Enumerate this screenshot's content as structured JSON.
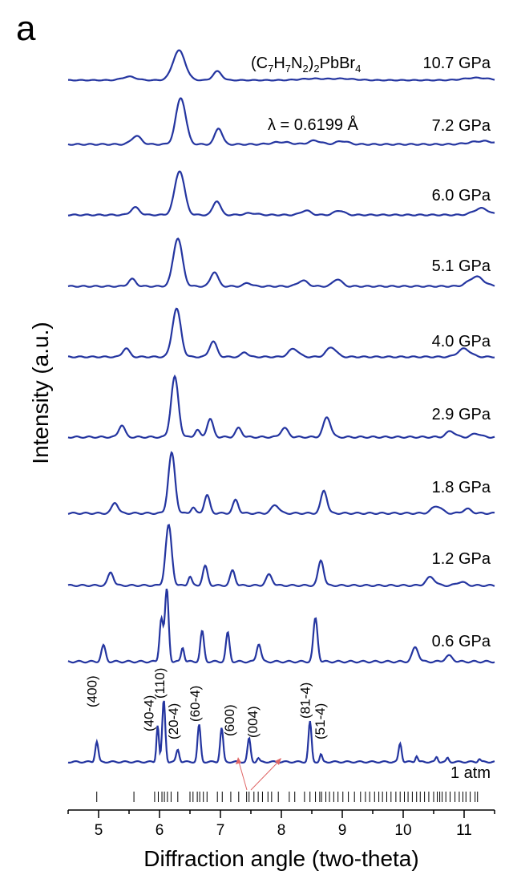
{
  "panel_label": "a",
  "colors": {
    "trace": "#2435a0",
    "axis": "#000000",
    "marker_arrow": "#e06666"
  },
  "chart_data": {
    "type": "line",
    "title": "",
    "xlabel": "Diffraction angle (two-theta)",
    "ylabel": "Intensity (a.u.)",
    "xlim": [
      4.5,
      11.5
    ],
    "x_ticks": [
      "5",
      "6",
      "7",
      "8",
      "9",
      "10",
      "11"
    ],
    "grid": false,
    "stacked": true,
    "annotations": {
      "formula": "(C7H7N2)2PbBr4",
      "wavelength": "λ = 0.6199 Å"
    },
    "miller_indices": [
      {
        "label": "(400)",
        "x": 4.97
      },
      {
        "label": "(40-4)",
        "x": 5.98
      },
      {
        "label": "(110)",
        "x": 6.08
      },
      {
        "label": "(20-4)",
        "x": 6.3
      },
      {
        "label": "(60-4)",
        "x": 6.66
      },
      {
        "label": "(600)",
        "x": 7.3
      },
      {
        "label": "(004)",
        "x": 7.55
      },
      {
        "label": "(81-4)",
        "x": 8.47
      },
      {
        "label": "(51-4)",
        "x": 8.66
      }
    ],
    "reference_ticks": [
      4.97,
      5.58,
      5.92,
      5.98,
      6.04,
      6.08,
      6.13,
      6.19,
      6.3,
      6.5,
      6.55,
      6.62,
      6.66,
      6.72,
      6.78,
      6.95,
      7.03,
      7.17,
      7.3,
      7.43,
      7.47,
      7.55,
      7.62,
      7.69,
      7.78,
      7.84,
      7.95,
      8.13,
      8.22,
      8.38,
      8.47,
      8.56,
      8.63,
      8.66,
      8.73,
      8.79,
      8.86,
      8.93,
      9.01,
      9.1,
      9.2,
      9.3,
      9.38,
      9.45,
      9.53,
      9.6,
      9.66,
      9.73,
      9.8,
      9.88,
      9.95,
      10.02,
      10.08,
      10.15,
      10.22,
      10.28,
      10.35,
      10.42,
      10.5,
      10.56,
      10.6,
      10.64,
      10.7,
      10.77,
      10.85,
      10.92,
      10.98,
      11.03,
      11.1,
      11.18,
      11.22
    ],
    "series": [
      {
        "name": "10.7 GPa",
        "peaks": [
          [
            5.5,
            0.12,
            0.11
          ],
          [
            6.32,
            1.0,
            0.1
          ],
          [
            6.95,
            0.3,
            0.07
          ],
          [
            8.5,
            0.05,
            0.2
          ],
          [
            9.0,
            0.05,
            0.2
          ],
          [
            11.2,
            0.08,
            0.2
          ]
        ]
      },
      {
        "name": "7.2 GPa",
        "peaks": [
          [
            5.62,
            0.18,
            0.08
          ],
          [
            6.35,
            1.0,
            0.08
          ],
          [
            6.97,
            0.35,
            0.06
          ],
          [
            8.0,
            0.05,
            0.15
          ],
          [
            8.55,
            0.08,
            0.1
          ],
          [
            9.0,
            0.07,
            0.1
          ],
          [
            11.3,
            0.07,
            0.2
          ]
        ]
      },
      {
        "name": "6.0 GPa",
        "peaks": [
          [
            5.6,
            0.17,
            0.07
          ],
          [
            6.33,
            1.0,
            0.08
          ],
          [
            6.94,
            0.32,
            0.06
          ],
          [
            7.5,
            0.04,
            0.1
          ],
          [
            8.4,
            0.1,
            0.08
          ],
          [
            8.95,
            0.1,
            0.08
          ],
          [
            11.28,
            0.15,
            0.12
          ]
        ]
      },
      {
        "name": "5.1 GPa",
        "peaks": [
          [
            5.55,
            0.15,
            0.06
          ],
          [
            6.3,
            1.0,
            0.075
          ],
          [
            6.9,
            0.3,
            0.06
          ],
          [
            7.45,
            0.07,
            0.06
          ],
          [
            8.35,
            0.12,
            0.08
          ],
          [
            8.92,
            0.15,
            0.07
          ],
          [
            11.2,
            0.2,
            0.12
          ]
        ]
      },
      {
        "name": "4.0 GPa",
        "peaks": [
          [
            5.45,
            0.18,
            0.055
          ],
          [
            6.28,
            1.0,
            0.07
          ],
          [
            6.88,
            0.32,
            0.06
          ],
          [
            7.4,
            0.1,
            0.05
          ],
          [
            8.2,
            0.17,
            0.08
          ],
          [
            8.82,
            0.2,
            0.08
          ],
          [
            11.0,
            0.17,
            0.1
          ]
        ]
      },
      {
        "name": "2.9 GPa",
        "peaks": [
          [
            5.38,
            0.2,
            0.05
          ],
          [
            6.25,
            1.0,
            0.06
          ],
          [
            6.62,
            0.12,
            0.04
          ],
          [
            6.83,
            0.3,
            0.05
          ],
          [
            7.3,
            0.15,
            0.05
          ],
          [
            8.05,
            0.15,
            0.06
          ],
          [
            8.75,
            0.33,
            0.06
          ],
          [
            10.78,
            0.1,
            0.07
          ],
          [
            11.2,
            0.06,
            0.07
          ]
        ]
      },
      {
        "name": "1.8 GPa",
        "peaks": [
          [
            5.27,
            0.18,
            0.05
          ],
          [
            6.2,
            1.0,
            0.055
          ],
          [
            6.55,
            0.1,
            0.035
          ],
          [
            6.78,
            0.3,
            0.045
          ],
          [
            7.25,
            0.22,
            0.045
          ],
          [
            7.9,
            0.14,
            0.06
          ],
          [
            8.7,
            0.38,
            0.05
          ],
          [
            10.55,
            0.12,
            0.08
          ],
          [
            11.05,
            0.07,
            0.07
          ]
        ]
      },
      {
        "name": "1.2 GPa",
        "peaks": [
          [
            5.2,
            0.22,
            0.045
          ],
          [
            6.15,
            1.0,
            0.05
          ],
          [
            6.5,
            0.15,
            0.03
          ],
          [
            6.75,
            0.32,
            0.04
          ],
          [
            7.2,
            0.25,
            0.04
          ],
          [
            7.8,
            0.18,
            0.05
          ],
          [
            8.65,
            0.42,
            0.045
          ],
          [
            10.45,
            0.14,
            0.07
          ],
          [
            10.95,
            0.06,
            0.07
          ]
        ]
      },
      {
        "name": "0.6 GPa",
        "peaks": [
          [
            5.08,
            0.22,
            0.035
          ],
          [
            6.03,
            0.6,
            0.03
          ],
          [
            6.12,
            1.0,
            0.03
          ],
          [
            6.38,
            0.2,
            0.025
          ],
          [
            6.7,
            0.42,
            0.03
          ],
          [
            7.12,
            0.4,
            0.03
          ],
          [
            7.63,
            0.25,
            0.035
          ],
          [
            8.56,
            0.6,
            0.035
          ],
          [
            10.2,
            0.2,
            0.05
          ],
          [
            10.75,
            0.08,
            0.06
          ]
        ]
      },
      {
        "name": "1 atm",
        "peaks": [
          [
            4.97,
            0.33,
            0.025
          ],
          [
            5.97,
            0.6,
            0.02
          ],
          [
            6.07,
            1.0,
            0.025
          ],
          [
            6.3,
            0.2,
            0.025
          ],
          [
            6.65,
            0.6,
            0.025
          ],
          [
            7.02,
            0.55,
            0.025
          ],
          [
            7.47,
            0.38,
            0.025
          ],
          [
            7.62,
            0.06,
            0.02
          ],
          [
            8.47,
            0.65,
            0.025
          ],
          [
            8.65,
            0.12,
            0.02
          ],
          [
            9.95,
            0.3,
            0.025
          ],
          [
            10.22,
            0.1,
            0.02
          ],
          [
            10.55,
            0.08,
            0.02
          ],
          [
            10.73,
            0.06,
            0.02
          ],
          [
            11.25,
            0.05,
            0.02
          ]
        ]
      }
    ]
  }
}
